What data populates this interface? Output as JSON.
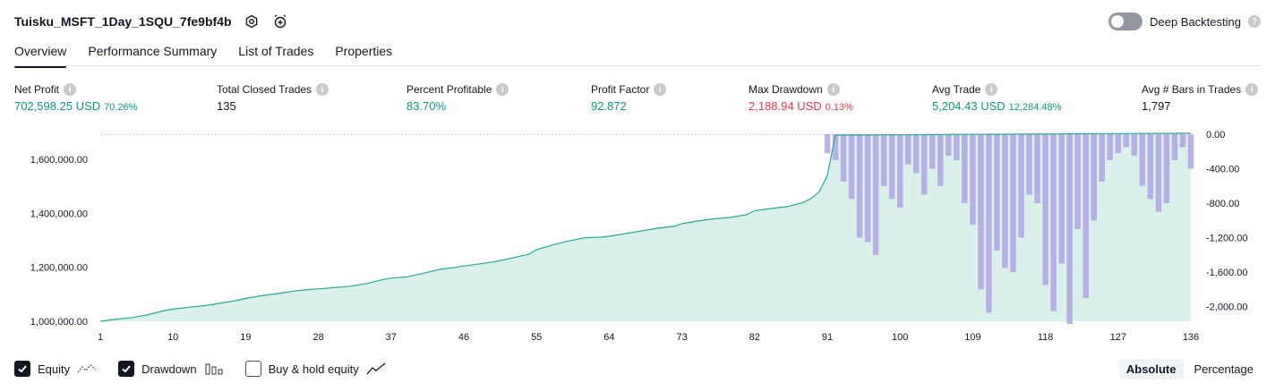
{
  "header": {
    "strategy_name": "Tuisku_MSFT_1Day_1SQU_7fe9bf4b",
    "settings_icon": "gear-icon",
    "alert_icon": "alarm-plus-icon",
    "deep_backtesting_label": "Deep Backtesting"
  },
  "tabs": [
    {
      "label": "Overview",
      "active": true
    },
    {
      "label": "Performance Summary",
      "active": false
    },
    {
      "label": "List of Trades",
      "active": false
    },
    {
      "label": "Properties",
      "active": false
    }
  ],
  "metrics": {
    "net_profit": {
      "label": "Net Profit",
      "value": "702,598.25 USD",
      "sub": "70.26%"
    },
    "total_closed_trades": {
      "label": "Total Closed Trades",
      "value": "135"
    },
    "percent_profitable": {
      "label": "Percent Profitable",
      "value": "83.70%"
    },
    "profit_factor": {
      "label": "Profit Factor",
      "value": "92.872"
    },
    "max_drawdown": {
      "label": "Max Drawdown",
      "value": "2,188.94 USD",
      "sub": "0.13%"
    },
    "avg_trade": {
      "label": "Avg Trade",
      "value": "5,204.43 USD",
      "sub": "12,284.48%"
    },
    "avg_bars": {
      "label": "Avg # Bars in Trades",
      "value": "1,797"
    }
  },
  "colors": {
    "equity_line": "#22ab94",
    "equity_fill": "#d3efe8",
    "drawdown_bar": "#b2a8e6",
    "positive": "#089981",
    "negative": "#f23645"
  },
  "chart_data": {
    "type": "area",
    "x_ticks": [
      1,
      10,
      19,
      28,
      37,
      46,
      55,
      64,
      73,
      82,
      91,
      100,
      109,
      118,
      127,
      136
    ],
    "x_tick_labels": [
      "1",
      "10",
      "19",
      "28",
      "37",
      "46",
      "55",
      "64",
      "73",
      "82",
      "91",
      "100",
      "109",
      "118",
      "127",
      "136"
    ],
    "xlim": [
      1,
      136
    ],
    "left_axis": {
      "ticks": [
        1000000,
        1200000,
        1400000,
        1600000
      ],
      "tick_labels": [
        "1,000,000.00",
        "1,200,000.00",
        "1,400,000.00",
        "1,600,000.00"
      ],
      "ylim": [
        1000000,
        1700000
      ]
    },
    "right_axis": {
      "ticks": [
        0,
        -400,
        -800,
        -1200,
        -1600,
        -2000
      ],
      "tick_labels": [
        "0.00",
        "-400.00",
        "-800.00",
        "-1,200.00",
        "-1,600.00",
        "-2,000.00"
      ],
      "ylim": [
        -2200,
        0
      ]
    },
    "series": [
      {
        "name": "Equity",
        "axis": "left",
        "x": [
          1,
          3,
          5,
          7,
          9,
          10,
          12,
          14,
          16,
          18,
          19,
          21,
          23,
          25,
          27,
          28,
          30,
          32,
          34,
          36,
          37,
          39,
          41,
          43,
          45,
          46,
          48,
          50,
          52,
          54,
          55,
          57,
          59,
          61,
          63,
          64,
          66,
          68,
          70,
          72,
          73,
          75,
          77,
          79,
          81,
          82,
          84,
          86,
          88,
          89,
          90,
          91,
          92,
          136
        ],
        "values": [
          1000000,
          1008000,
          1014000,
          1025000,
          1040000,
          1045000,
          1052000,
          1058000,
          1068000,
          1078000,
          1085000,
          1095000,
          1103000,
          1112000,
          1118000,
          1120000,
          1125000,
          1130000,
          1140000,
          1155000,
          1160000,
          1165000,
          1178000,
          1192000,
          1200000,
          1205000,
          1213000,
          1222000,
          1235000,
          1248000,
          1265000,
          1283000,
          1298000,
          1310000,
          1312000,
          1315000,
          1325000,
          1335000,
          1345000,
          1352000,
          1362000,
          1372000,
          1380000,
          1385000,
          1395000,
          1410000,
          1418000,
          1425000,
          1440000,
          1455000,
          1480000,
          1540000,
          1690000,
          1697000
        ]
      },
      {
        "name": "Drawdown",
        "axis": "right",
        "x": [
          91,
          92,
          93,
          94,
          95,
          96,
          97,
          98,
          99,
          100,
          101,
          102,
          103,
          104,
          105,
          106,
          107,
          108,
          109,
          110,
          111,
          112,
          113,
          114,
          115,
          116,
          117,
          118,
          119,
          120,
          121,
          122,
          123,
          124,
          125,
          126,
          127,
          128,
          129,
          130,
          131,
          132,
          133,
          134,
          135,
          136
        ],
        "values": [
          -220,
          -300,
          -550,
          -750,
          -1200,
          -1250,
          -1400,
          -600,
          -750,
          -850,
          -350,
          -450,
          -700,
          -400,
          -600,
          -250,
          -300,
          -800,
          -1050,
          -1800,
          -2070,
          -1350,
          -1550,
          -1600,
          -1200,
          -700,
          -800,
          -1750,
          -2050,
          -1500,
          -2200,
          -1100,
          -1900,
          -1000,
          -550,
          -300,
          -220,
          -150,
          -250,
          -600,
          -750,
          -900,
          -800,
          -300,
          -150,
          -400
        ]
      }
    ],
    "legend": [
      {
        "label": "Equity",
        "checked": true,
        "icon": "equity-line-icon"
      },
      {
        "label": "Drawdown",
        "checked": true,
        "icon": "drawdown-bars-icon"
      },
      {
        "label": "Buy & hold equity",
        "checked": false,
        "icon": "buy-hold-line-icon"
      }
    ]
  },
  "modes": [
    {
      "label": "Absolute",
      "active": true
    },
    {
      "label": "Percentage",
      "active": false
    }
  ]
}
